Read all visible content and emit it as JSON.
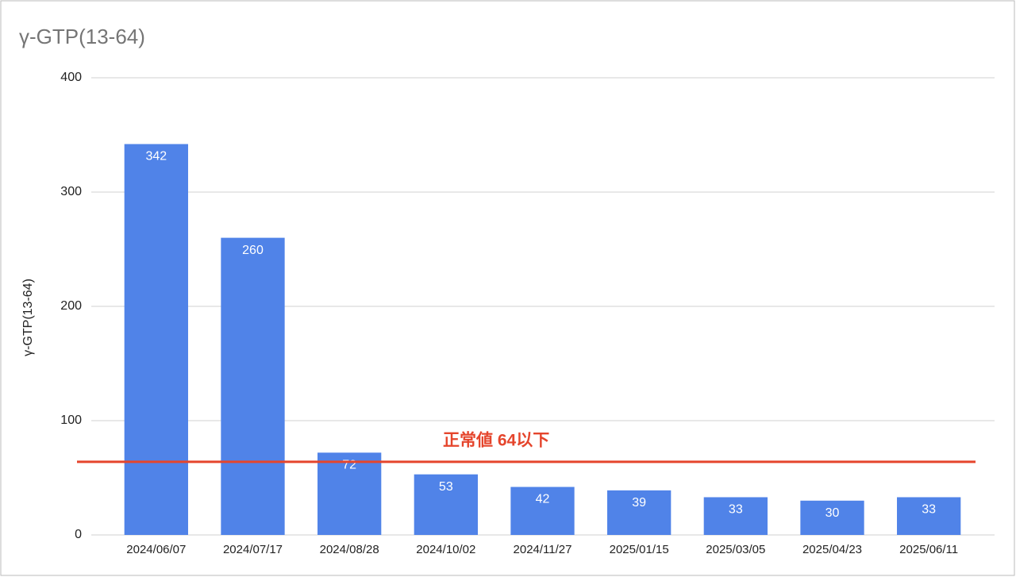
{
  "chart_data": {
    "type": "bar",
    "title": "γ-GTP(13-64)",
    "y_label": "γ-GTP(13-64)",
    "categories": [
      "2024/06/07",
      "2024/07/17",
      "2024/08/28",
      "2024/10/02",
      "2024/11/27",
      "2025/01/15",
      "2025/03/05",
      "2025/04/23",
      "2025/06/11"
    ],
    "values": [
      342,
      260,
      72,
      53,
      42,
      39,
      33,
      30,
      33
    ],
    "color": "#5083e8",
    "ylim": [
      0,
      400
    ],
    "yticks": [
      0,
      100,
      200,
      300,
      400
    ],
    "grid": true,
    "reference_line": {
      "value": 64,
      "label": "正常値 64以下",
      "color": "#e5452c"
    }
  }
}
